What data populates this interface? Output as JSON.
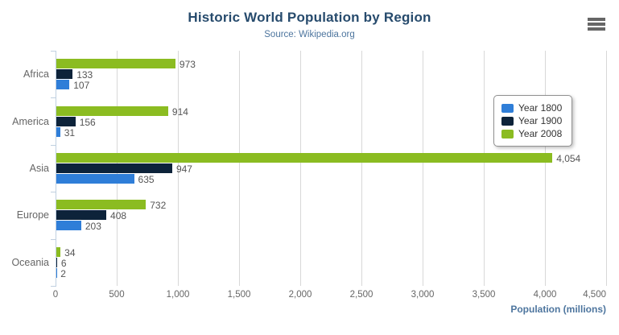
{
  "menu": {
    "icon": "hamburger-menu"
  },
  "chart_data": {
    "type": "bar",
    "orientation": "horizontal",
    "title": "Historic World Population by Region",
    "subtitle": "Source: Wikipedia.org",
    "categories": [
      "Africa",
      "America",
      "Asia",
      "Europe",
      "Oceania"
    ],
    "series": [
      {
        "name": "Year 1800",
        "color": "#2f7ed8",
        "values": [
          107,
          31,
          635,
          203,
          2
        ]
      },
      {
        "name": "Year 1900",
        "color": "#0d233a",
        "values": [
          133,
          156,
          947,
          408,
          6
        ]
      },
      {
        "name": "Year 2008",
        "color": "#8bbc21",
        "values": [
          973,
          914,
          4054,
          732,
          34
        ]
      }
    ],
    "xlabel": "Population (millions)",
    "xlim": [
      0,
      4500
    ],
    "xticks": [
      0,
      500,
      1000,
      1500,
      2000,
      2500,
      3000,
      3500,
      4000,
      4500
    ],
    "grid": true,
    "legend_position": "right",
    "data_labels": true,
    "colors": {
      "title": "#274b6d",
      "subtitle": "#4d759e",
      "axis_line": "#c0d0e0",
      "gridline": "#d8d8d8",
      "tick_label": "#666666",
      "data_label": "#555555",
      "menu_icon": "#666666"
    }
  }
}
